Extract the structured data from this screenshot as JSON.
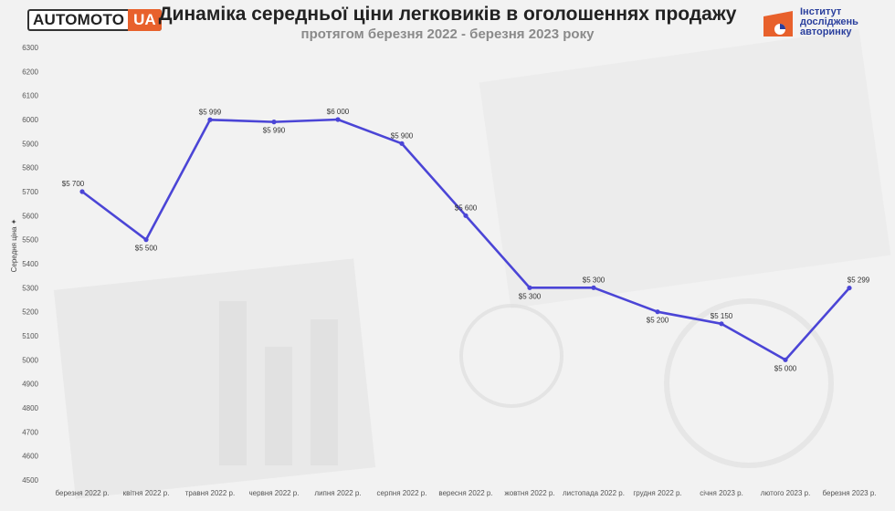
{
  "header": {
    "logo_main": "AUTOMOTO",
    "logo_ua": "UA",
    "title": "Динаміка середньої ціни легковиків в оголошеннях продажу",
    "subtitle": "протягом березня 2022 - березня 2023 року",
    "institute_lines": [
      "Інститут",
      "досліджень",
      "авторинку"
    ]
  },
  "colors": {
    "line": "#4b45d6",
    "accent": "#e8612c",
    "institute": "#2a3f9d"
  },
  "chart_data": {
    "type": "line",
    "title": "Динаміка середньої ціни легковиків в оголошеннях продажу",
    "subtitle": "протягом березня 2022 - березня 2023 року",
    "ylabel": "Середня ціна ✦",
    "xlabel": "",
    "ylim": [
      4500,
      6300
    ],
    "yticks": [
      4500,
      4600,
      4700,
      4800,
      4900,
      5000,
      5100,
      5200,
      5300,
      5400,
      5500,
      5600,
      5700,
      5800,
      5900,
      6000,
      6100,
      6200,
      6300
    ],
    "categories": [
      "березня 2022 р.",
      "квітня 2022 р.",
      "травня 2022 р.",
      "червня 2022 р.",
      "липня 2022 р.",
      "серпня 2022 р.",
      "вересня 2022 р.",
      "жовтня 2022 р.",
      "листопада 2022 р.",
      "грудня 2022 р.",
      "січня 2023 р.",
      "лютого 2023 р.",
      "березня 2023 р."
    ],
    "values": [
      5700,
      5500,
      5999,
      5990,
      6000,
      5900,
      5600,
      5300,
      5300,
      5200,
      5150,
      5000,
      5299
    ],
    "data_labels": [
      "$5 700",
      "$5 500",
      "$5 999",
      "$5 990",
      "$6 000",
      "$5 900",
      "$5 600",
      "$5 300",
      "$5 300",
      "$5 200",
      "$5 150",
      "$5 000",
      "$5 299"
    ],
    "grid": false,
    "legend": "none"
  }
}
